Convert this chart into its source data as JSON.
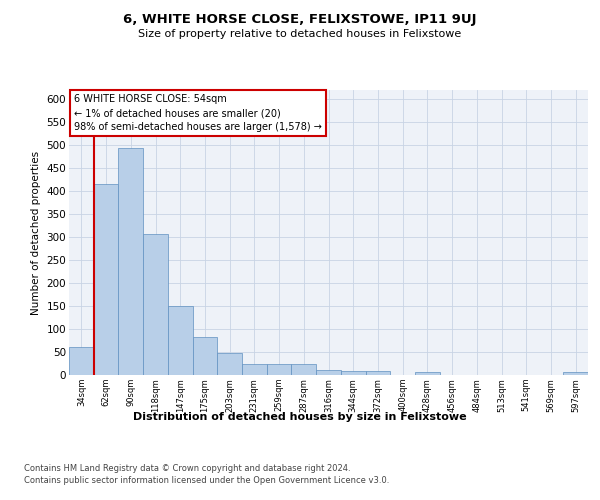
{
  "title": "6, WHITE HORSE CLOSE, FELIXSTOWE, IP11 9UJ",
  "subtitle": "Size of property relative to detached houses in Felixstowe",
  "xlabel": "Distribution of detached houses by size in Felixstowe",
  "ylabel": "Number of detached properties",
  "annotation_line1": "6 WHITE HORSE CLOSE: 54sqm",
  "annotation_line2": "← 1% of detached houses are smaller (20)",
  "annotation_line3": "98% of semi-detached houses are larger (1,578) →",
  "footer_line1": "Contains HM Land Registry data © Crown copyright and database right 2024.",
  "footer_line2": "Contains public sector information licensed under the Open Government Licence v3.0.",
  "bar_color": "#b8cfe8",
  "bar_edge_color": "#6090c0",
  "grid_color": "#c8d4e4",
  "annotation_box_color": "#cc0000",
  "marker_line_color": "#cc0000",
  "bg_color": "#eef2f8",
  "categories": [
    "34sqm",
    "62sqm",
    "90sqm",
    "118sqm",
    "147sqm",
    "175sqm",
    "203sqm",
    "231sqm",
    "259sqm",
    "287sqm",
    "316sqm",
    "344sqm",
    "372sqm",
    "400sqm",
    "428sqm",
    "456sqm",
    "484sqm",
    "513sqm",
    "541sqm",
    "569sqm",
    "597sqm"
  ],
  "values": [
    60,
    415,
    493,
    307,
    150,
    82,
    47,
    25,
    25,
    25,
    10,
    8,
    8,
    0,
    6,
    0,
    0,
    0,
    0,
    0,
    6
  ],
  "ylim": [
    0,
    620
  ],
  "yticks": [
    0,
    50,
    100,
    150,
    200,
    250,
    300,
    350,
    400,
    450,
    500,
    550,
    600
  ]
}
